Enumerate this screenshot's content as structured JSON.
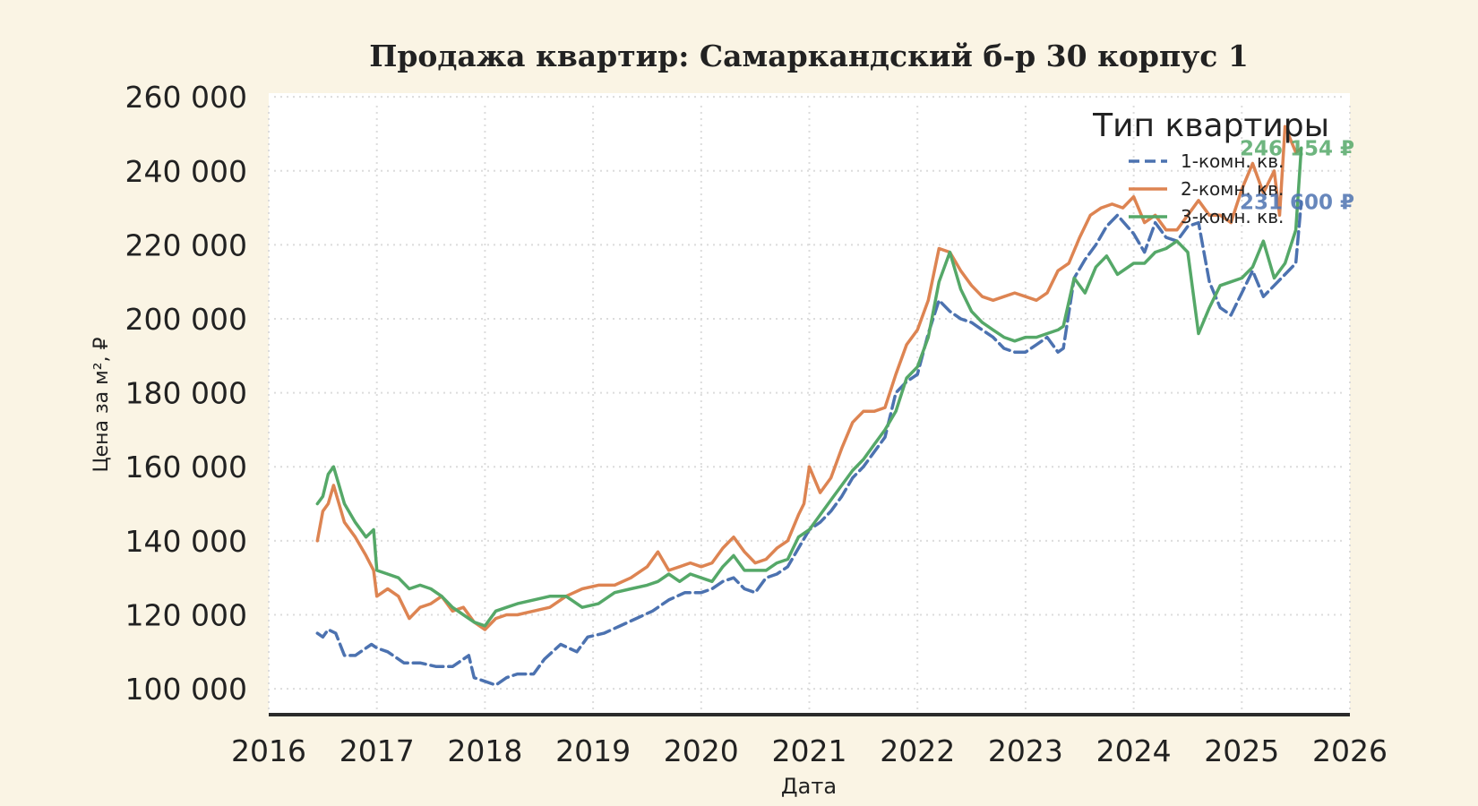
{
  "chart_data": {
    "type": "line",
    "title": "Продажа квартир: Самаркандский б-р 30 корпус 1",
    "xlabel": "Дата",
    "ylabel": "Цена за м², ₽",
    "xlim": [
      2016,
      2026
    ],
    "ylim": [
      93000,
      261000
    ],
    "x_ticks": [
      "2016",
      "2017",
      "2018",
      "2019",
      "2020",
      "2021",
      "2022",
      "2023",
      "2024",
      "2025",
      "2026"
    ],
    "y_ticks": [
      "100 000",
      "120 000",
      "140 000",
      "160 000",
      "180 000",
      "200 000",
      "220 000",
      "240 000",
      "260 000"
    ],
    "grid": true,
    "legend": {
      "title": "Тип квартиры",
      "position": "top-right"
    },
    "series": [
      {
        "name": "1-комн. кв.",
        "color": "#4c72b0",
        "dash": "dashed",
        "end_label": "231 600 ₽",
        "x": [
          2016.45,
          2016.5,
          2016.55,
          2016.62,
          2016.7,
          2016.8,
          2016.95,
          2017.0,
          2017.1,
          2017.25,
          2017.4,
          2017.55,
          2017.7,
          2017.85,
          2017.9,
          2018.0,
          2018.1,
          2018.2,
          2018.3,
          2018.45,
          2018.55,
          2018.7,
          2018.85,
          2018.95,
          2019.1,
          2019.25,
          2019.4,
          2019.55,
          2019.7,
          2019.85,
          2020.0,
          2020.1,
          2020.2,
          2020.3,
          2020.4,
          2020.5,
          2020.6,
          2020.7,
          2020.8,
          2020.9,
          2021.0,
          2021.1,
          2021.2,
          2021.3,
          2021.4,
          2021.5,
          2021.6,
          2021.7,
          2021.8,
          2021.9,
          2022.0,
          2022.1,
          2022.2,
          2022.3,
          2022.4,
          2022.5,
          2022.6,
          2022.7,
          2022.8,
          2022.9,
          2023.0,
          2023.1,
          2023.2,
          2023.3,
          2023.35,
          2023.45,
          2023.55,
          2023.65,
          2023.75,
          2023.85,
          2024.0,
          2024.1,
          2024.2,
          2024.3,
          2024.4,
          2024.5,
          2024.6,
          2024.7,
          2024.8,
          2024.9,
          2025.0,
          2025.1,
          2025.2,
          2025.3,
          2025.4,
          2025.5,
          2025.55
        ],
        "y": [
          115000,
          114000,
          116000,
          115000,
          109000,
          109000,
          112000,
          111000,
          110000,
          107000,
          107000,
          106000,
          106000,
          109000,
          103000,
          102000,
          101000,
          103000,
          104000,
          104000,
          108000,
          112000,
          110000,
          114000,
          115000,
          117000,
          119000,
          121000,
          124000,
          126000,
          126000,
          127000,
          129000,
          130000,
          127000,
          126000,
          130000,
          131000,
          133000,
          138000,
          143000,
          145000,
          148000,
          152000,
          157000,
          160000,
          164000,
          168000,
          180000,
          183000,
          185000,
          196000,
          205000,
          202000,
          200000,
          199000,
          197000,
          195000,
          192000,
          191000,
          191000,
          193000,
          195000,
          191000,
          192000,
          211000,
          216000,
          220000,
          225000,
          228000,
          223000,
          218000,
          226000,
          222000,
          221000,
          225000,
          226000,
          210000,
          203000,
          201000,
          207000,
          213000,
          206000,
          209000,
          212000,
          215000,
          231600
        ]
      },
      {
        "name": "2-комн. кв.",
        "color": "#dd8452",
        "dash": "solid",
        "end_label": "",
        "x": [
          2016.45,
          2016.5,
          2016.55,
          2016.6,
          2016.7,
          2016.8,
          2016.9,
          2016.97,
          2017.0,
          2017.1,
          2017.2,
          2017.3,
          2017.4,
          2017.5,
          2017.6,
          2017.7,
          2017.8,
          2017.9,
          2018.0,
          2018.1,
          2018.2,
          2018.3,
          2018.45,
          2018.6,
          2018.75,
          2018.9,
          2019.05,
          2019.2,
          2019.35,
          2019.5,
          2019.6,
          2019.7,
          2019.8,
          2019.9,
          2020.0,
          2020.1,
          2020.2,
          2020.3,
          2020.4,
          2020.5,
          2020.6,
          2020.7,
          2020.8,
          2020.9,
          2020.95,
          2021.0,
          2021.1,
          2021.2,
          2021.3,
          2021.4,
          2021.5,
          2021.6,
          2021.7,
          2021.8,
          2021.9,
          2022.0,
          2022.1,
          2022.2,
          2022.3,
          2022.4,
          2022.5,
          2022.6,
          2022.7,
          2022.8,
          2022.9,
          2023.0,
          2023.1,
          2023.2,
          2023.3,
          2023.4,
          2023.5,
          2023.6,
          2023.7,
          2023.8,
          2023.9,
          2024.0,
          2024.1,
          2024.2,
          2024.3,
          2024.4,
          2024.5,
          2024.6,
          2024.7,
          2024.8,
          2024.9,
          2025.0,
          2025.1,
          2025.2,
          2025.3,
          2025.35,
          2025.4,
          2025.5,
          2025.55
        ],
        "y": [
          140000,
          148000,
          150000,
          155000,
          145000,
          141000,
          136000,
          132000,
          125000,
          127000,
          125000,
          119000,
          122000,
          123000,
          125000,
          121000,
          122000,
          118000,
          116000,
          119000,
          120000,
          120000,
          121000,
          122000,
          125000,
          127000,
          128000,
          128000,
          130000,
          133000,
          137000,
          132000,
          133000,
          134000,
          133000,
          134000,
          138000,
          141000,
          137000,
          134000,
          135000,
          138000,
          140000,
          147000,
          150000,
          160000,
          153000,
          157000,
          165000,
          172000,
          175000,
          175000,
          176000,
          185000,
          193000,
          197000,
          205000,
          219000,
          218000,
          213000,
          209000,
          206000,
          205000,
          206000,
          207000,
          206000,
          205000,
          207000,
          213000,
          215000,
          222000,
          228000,
          230000,
          231000,
          230000,
          233000,
          226000,
          228000,
          224000,
          224000,
          228000,
          232000,
          228000,
          228000,
          226000,
          235000,
          242000,
          234000,
          240000,
          228000,
          252000,
          245000,
          246000
        ]
      },
      {
        "name": "3-комн. кв.",
        "color": "#55a868",
        "dash": "solid",
        "end_label": "246 154 ₽",
        "x": [
          2016.45,
          2016.5,
          2016.55,
          2016.6,
          2016.65,
          2016.7,
          2016.8,
          2016.9,
          2016.97,
          2017.0,
          2017.1,
          2017.2,
          2017.3,
          2017.4,
          2017.5,
          2017.6,
          2017.7,
          2017.8,
          2017.9,
          2018.0,
          2018.1,
          2018.2,
          2018.3,
          2018.45,
          2018.6,
          2018.75,
          2018.9,
          2019.05,
          2019.2,
          2019.35,
          2019.5,
          2019.6,
          2019.7,
          2019.8,
          2019.9,
          2020.0,
          2020.1,
          2020.2,
          2020.3,
          2020.4,
          2020.5,
          2020.6,
          2020.7,
          2020.8,
          2020.9,
          2021.0,
          2021.1,
          2021.2,
          2021.3,
          2021.4,
          2021.5,
          2021.6,
          2021.7,
          2021.8,
          2021.9,
          2022.0,
          2022.1,
          2022.2,
          2022.3,
          2022.4,
          2022.5,
          2022.6,
          2022.7,
          2022.8,
          2022.9,
          2023.0,
          2023.1,
          2023.2,
          2023.3,
          2023.35,
          2023.45,
          2023.55,
          2023.65,
          2023.75,
          2023.85,
          2024.0,
          2024.1,
          2024.2,
          2024.3,
          2024.4,
          2024.5,
          2024.6,
          2024.7,
          2024.8,
          2024.9,
          2025.0,
          2025.1,
          2025.2,
          2025.3,
          2025.4,
          2025.5,
          2025.55
        ],
        "y": [
          150000,
          152000,
          158000,
          160000,
          155000,
          150000,
          145000,
          141000,
          143000,
          132000,
          131000,
          130000,
          127000,
          128000,
          127000,
          125000,
          122000,
          120000,
          118000,
          117000,
          121000,
          122000,
          123000,
          124000,
          125000,
          125000,
          122000,
          123000,
          126000,
          127000,
          128000,
          129000,
          131000,
          129000,
          131000,
          130000,
          129000,
          133000,
          136000,
          132000,
          132000,
          132000,
          134000,
          135000,
          141000,
          143000,
          147000,
          151000,
          155000,
          159000,
          162000,
          166000,
          170000,
          175000,
          184000,
          187000,
          195000,
          210000,
          218000,
          208000,
          202000,
          199000,
          197000,
          195000,
          194000,
          195000,
          195000,
          196000,
          197000,
          198000,
          211000,
          207000,
          214000,
          217000,
          212000,
          215000,
          215000,
          218000,
          219000,
          221000,
          218000,
          196000,
          203000,
          209000,
          210000,
          211000,
          214000,
          221000,
          211000,
          215000,
          224000,
          246154
        ]
      }
    ]
  }
}
